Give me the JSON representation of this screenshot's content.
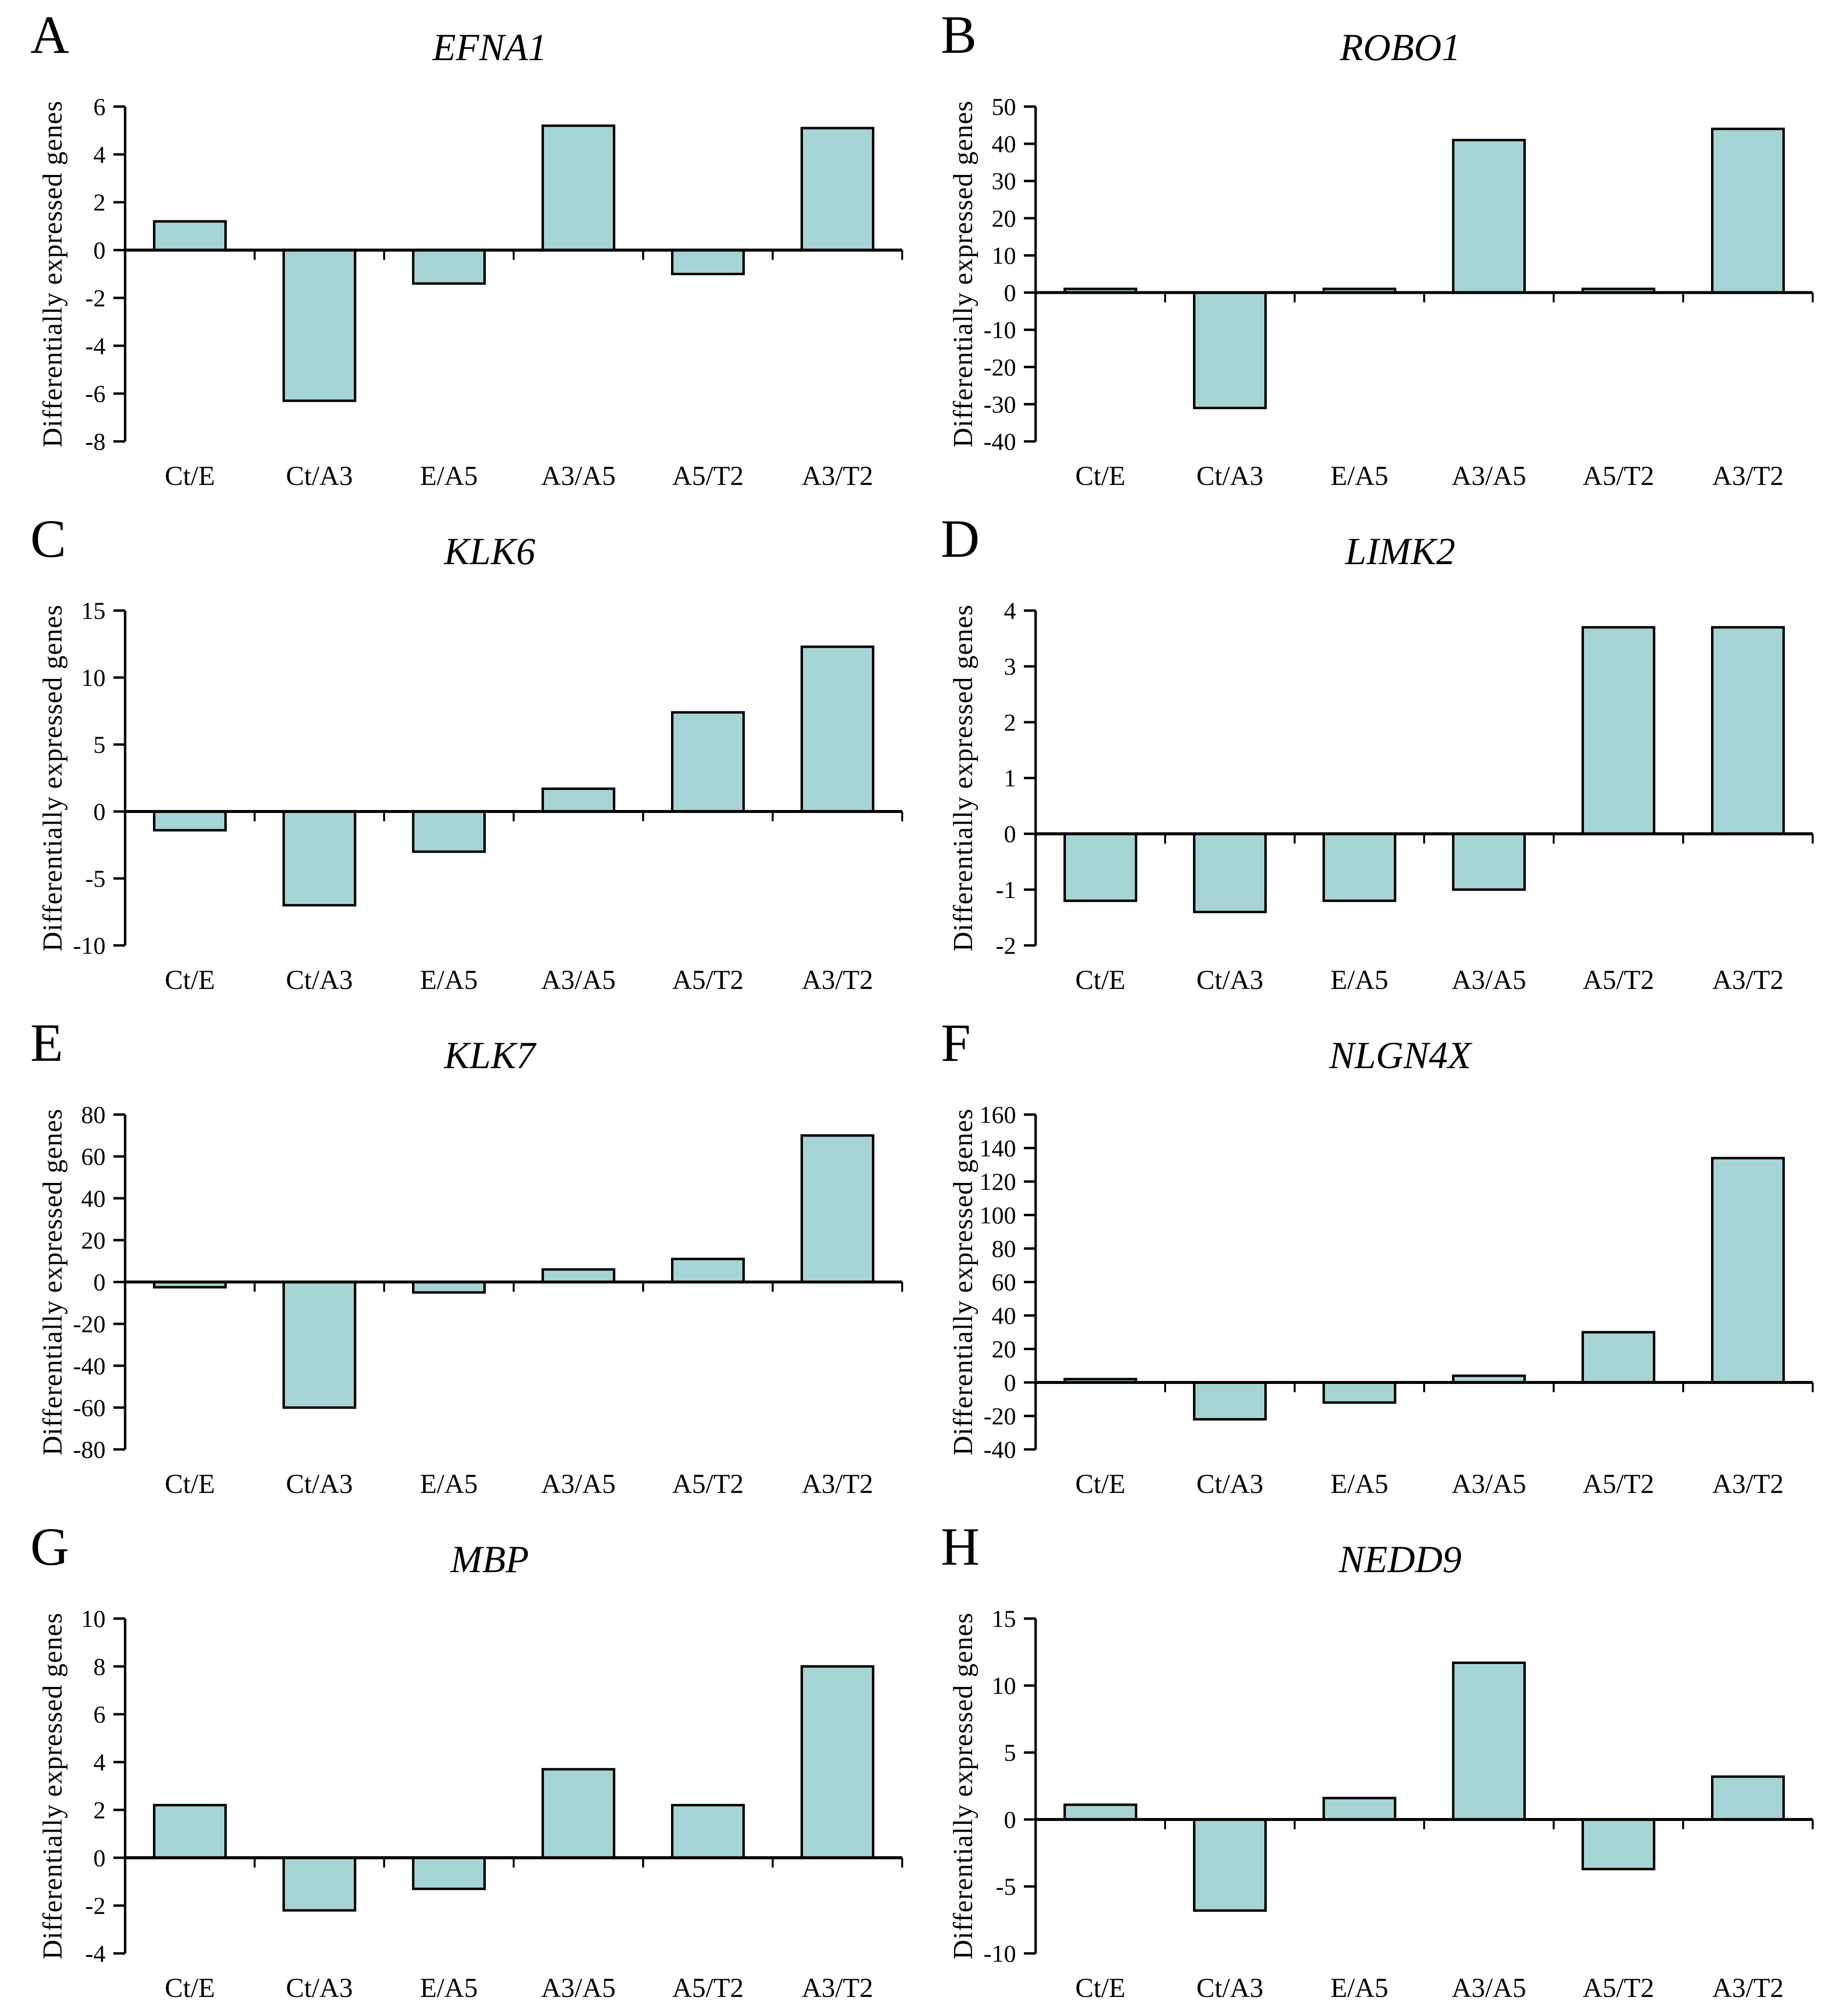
{
  "styles": {
    "bar_fill": "#a6d4d4",
    "bar_stroke": "#000000",
    "axis_color": "#000000"
  },
  "chart_data": [
    {
      "panel": "A",
      "type": "bar",
      "title": "EFNA1",
      "ylabel": "Differentially expressed genes",
      "categories": [
        "Ct/E",
        "Ct/A3",
        "E/A5",
        "A3/A5",
        "A5/T2",
        "A3/T2"
      ],
      "values": [
        1.2,
        -6.3,
        -1.4,
        5.2,
        -1.0,
        5.1
      ],
      "ylim": [
        -8,
        6
      ],
      "ytick_step": 2,
      "grid": false,
      "legend": "none"
    },
    {
      "panel": "B",
      "type": "bar",
      "title": "ROBO1",
      "ylabel": "Differentially expressed genes",
      "categories": [
        "Ct/E",
        "Ct/A3",
        "E/A5",
        "A3/A5",
        "A5/T2",
        "A3/T2"
      ],
      "values": [
        1,
        -31,
        1,
        41,
        1,
        44
      ],
      "ylim": [
        -40,
        50
      ],
      "ytick_step": 10,
      "grid": false,
      "legend": "none"
    },
    {
      "panel": "C",
      "type": "bar",
      "title": "KLK6",
      "ylabel": "Differentially expressed genes",
      "categories": [
        "Ct/E",
        "Ct/A3",
        "E/A5",
        "A3/A5",
        "A5/T2",
        "A3/T2"
      ],
      "values": [
        -1.4,
        -7,
        -3,
        1.7,
        7.4,
        12.3
      ],
      "ylim": [
        -10,
        15
      ],
      "ytick_step": 5,
      "grid": false,
      "legend": "none"
    },
    {
      "panel": "D",
      "type": "bar",
      "title": "LIMK2",
      "ylabel": "Differentially expressed genes",
      "categories": [
        "Ct/E",
        "Ct/A3",
        "E/A5",
        "A3/A5",
        "A5/T2",
        "A3/T2"
      ],
      "values": [
        -1.2,
        -1.4,
        -1.2,
        -1.0,
        3.7,
        3.7
      ],
      "ylim": [
        -2,
        4
      ],
      "ytick_step": 1,
      "grid": false,
      "legend": "none"
    },
    {
      "panel": "E",
      "type": "bar",
      "title": "KLK7",
      "ylabel": "Differentially expressed genes",
      "categories": [
        "Ct/E",
        "Ct/A3",
        "E/A5",
        "A3/A5",
        "A5/T2",
        "A3/T2"
      ],
      "values": [
        -2.5,
        -60,
        -5,
        6,
        11,
        70
      ],
      "ylim": [
        -80,
        80
      ],
      "ytick_step": 20,
      "grid": false,
      "legend": "none"
    },
    {
      "panel": "F",
      "type": "bar",
      "title": "NLGN4X",
      "ylabel": "Differentially expressed genes",
      "categories": [
        "Ct/E",
        "Ct/A3",
        "E/A5",
        "A3/A5",
        "A5/T2",
        "A3/T2"
      ],
      "values": [
        2,
        -22,
        -12,
        4,
        30,
        134
      ],
      "ylim": [
        -40,
        160
      ],
      "ytick_step": 20,
      "grid": false,
      "legend": "none"
    },
    {
      "panel": "G",
      "type": "bar",
      "title": "MBP",
      "ylabel": "Differentially expressed genes",
      "categories": [
        "Ct/E",
        "Ct/A3",
        "E/A5",
        "A3/A5",
        "A5/T2",
        "A3/T2"
      ],
      "values": [
        2.2,
        -2.2,
        -1.3,
        3.7,
        2.2,
        8
      ],
      "ylim": [
        -4,
        10
      ],
      "ytick_step": 2,
      "grid": false,
      "legend": "none"
    },
    {
      "panel": "H",
      "type": "bar",
      "title": "NEDD9",
      "ylabel": "Differentially expressed genes",
      "categories": [
        "Ct/E",
        "Ct/A3",
        "E/A5",
        "A3/A5",
        "A5/T2",
        "A3/T2"
      ],
      "values": [
        1.1,
        -6.8,
        1.6,
        11.7,
        -3.7,
        3.2
      ],
      "ylim": [
        -10,
        15
      ],
      "ytick_step": 5,
      "grid": false,
      "legend": "none"
    }
  ]
}
